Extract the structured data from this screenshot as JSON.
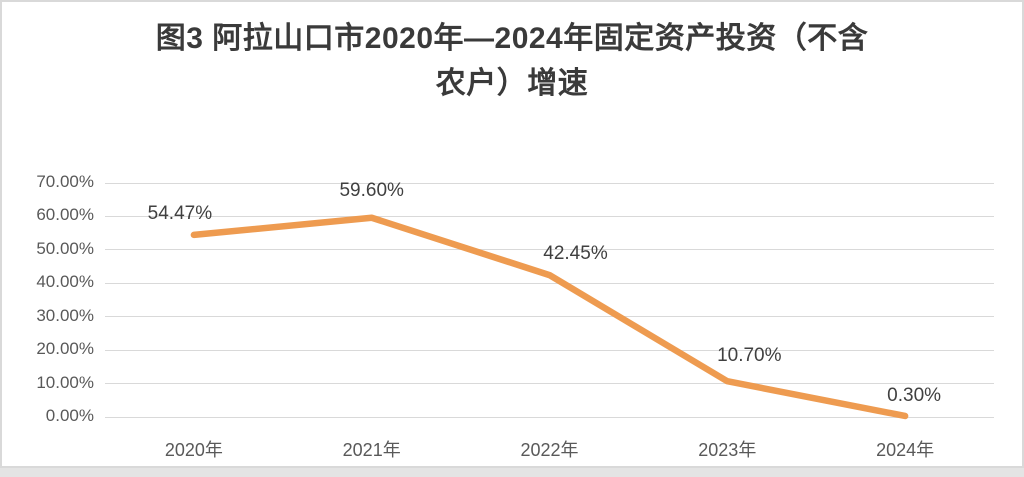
{
  "chart_data": {
    "type": "line",
    "title": "图3 阿拉山口市2020年—2024年固定资产投资（不含农户）增速",
    "title_lines": [
      "图3 阿拉山口市2020年—2024年固定资产投资（不含",
      "农户）增速"
    ],
    "categories": [
      "2020年",
      "2021年",
      "2022年",
      "2023年",
      "2024年"
    ],
    "values": [
      54.47,
      59.6,
      42.45,
      10.7,
      0.3
    ],
    "data_labels": [
      "54.47%",
      "59.60%",
      "42.45%",
      "10.70%",
      "0.30%"
    ],
    "y_ticks": [
      "70.00%",
      "60.00%",
      "50.00%",
      "40.00%",
      "30.00%",
      "20.00%",
      "10.00%",
      "0.00%"
    ],
    "ylim": [
      0,
      70
    ],
    "xlabel": "",
    "ylabel": "",
    "grid": true,
    "legend": "none",
    "line_color": "#ee9b50",
    "grid_color": "#d9d9d9",
    "title_color": "#3a3a3a",
    "tick_color": "#595959",
    "data_label_color": "#404040"
  }
}
